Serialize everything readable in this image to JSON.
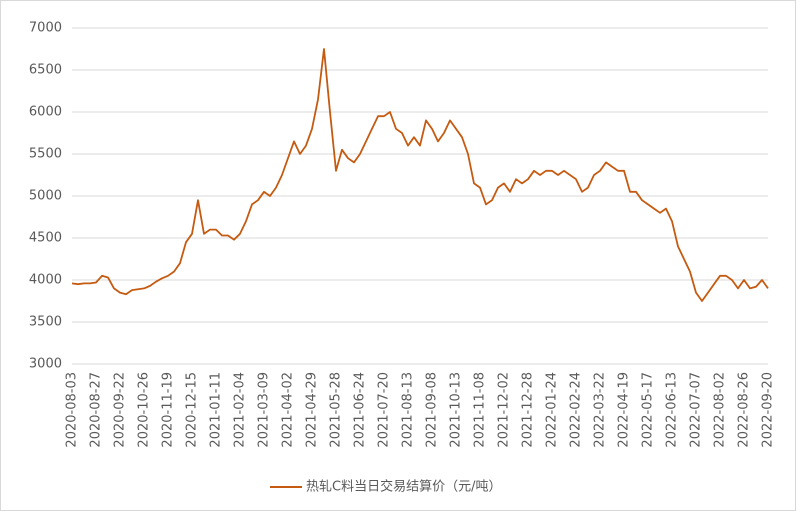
{
  "chart_data": {
    "type": "line",
    "categories": [
      "2020-08-03",
      null,
      null,
      null,
      "2020-08-27",
      null,
      null,
      null,
      "2020-09-22",
      null,
      null,
      null,
      "2020-10-26",
      null,
      null,
      null,
      "2020-11-19",
      null,
      null,
      null,
      "2020-12-15",
      null,
      null,
      null,
      "2021-01-11",
      null,
      null,
      null,
      "2021-02-04",
      null,
      null,
      null,
      "2021-03-09",
      null,
      null,
      null,
      "2021-04-02",
      null,
      null,
      null,
      "2021-04-29",
      null,
      null,
      null,
      "2021-05-28",
      null,
      null,
      null,
      "2021-06-24",
      null,
      null,
      null,
      "2021-07-20",
      null,
      null,
      null,
      "2021-08-13",
      null,
      null,
      null,
      "2021-09-08",
      null,
      null,
      null,
      "2021-10-13",
      null,
      null,
      null,
      "2021-11-08",
      null,
      null,
      null,
      "2021-12-02",
      null,
      null,
      null,
      "2021-12-28",
      null,
      null,
      null,
      "2022-01-24",
      null,
      null,
      null,
      "2022-02-24",
      null,
      null,
      null,
      "2022-03-22",
      null,
      null,
      null,
      "2022-04-19",
      null,
      null,
      null,
      "2022-05-17",
      null,
      null,
      null,
      "2022-06-13",
      null,
      null,
      null,
      "2022-07-07",
      null,
      null,
      null,
      "2022-08-02",
      null,
      null,
      null,
      "2022-08-26",
      null,
      null,
      null,
      "2022-09-20"
    ],
    "series": [
      {
        "name": "热轧C料当日交易结算价（元/吨）",
        "color": "#c55a11",
        "values": [
          3960,
          3950,
          3960,
          3960,
          3970,
          4050,
          4030,
          3900,
          3850,
          3830,
          3880,
          3890,
          3900,
          3930,
          3980,
          4020,
          4050,
          4100,
          4200,
          4450,
          4550,
          4950,
          4550,
          4600,
          4600,
          4530,
          4530,
          4480,
          4550,
          4700,
          4900,
          4950,
          5050,
          5000,
          5100,
          5250,
          5450,
          5650,
          5500,
          5600,
          5800,
          6150,
          6750,
          6000,
          5300,
          5550,
          5450,
          5400,
          5500,
          5650,
          5800,
          5950,
          5950,
          6000,
          5800,
          5750,
          5600,
          5700,
          5600,
          5900,
          5800,
          5650,
          5750,
          5900,
          5800,
          5700,
          5500,
          5150,
          5100,
          4900,
          4950,
          5100,
          5150,
          5050,
          5200,
          5150,
          5200,
          5300,
          5250,
          5300,
          5300,
          5250,
          5300,
          5250,
          5200,
          5050,
          5100,
          5250,
          5300,
          5400,
          5350,
          5300,
          5300,
          5050,
          5050,
          4950,
          4900,
          4850,
          4800,
          4850,
          4700,
          4400,
          4250,
          4100,
          3850,
          3750,
          3850,
          3950,
          4050,
          4050,
          4000,
          3900,
          4000,
          3900,
          3920,
          4000,
          3900
        ]
      }
    ],
    "ylim": [
      3000,
      7000
    ],
    "yticks": [
      3000,
      3500,
      4000,
      4500,
      5000,
      5500,
      6000,
      6500,
      7000
    ],
    "grid": true,
    "legend": "bottom"
  }
}
